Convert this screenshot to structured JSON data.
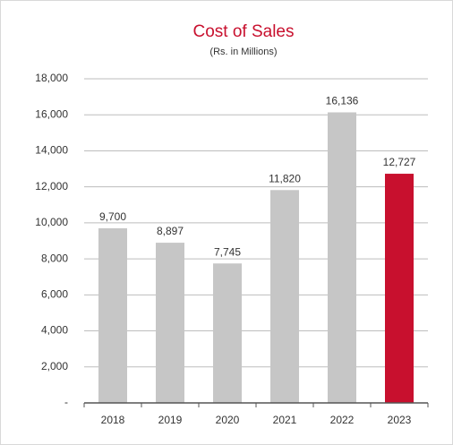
{
  "chart_data": {
    "type": "bar",
    "title": "Cost of Sales",
    "subtitle": "(Rs. in Millions)",
    "categories": [
      "2018",
      "2019",
      "2020",
      "2021",
      "2022",
      "2023"
    ],
    "values": [
      9700,
      8897,
      7745,
      11820,
      16136,
      12727
    ],
    "value_labels": [
      "9,700",
      "8,897",
      "7,745",
      "11,820",
      "16,136",
      "12,727"
    ],
    "colors": [
      "#c6c6c6",
      "#c6c6c6",
      "#c6c6c6",
      "#c6c6c6",
      "#c6c6c6",
      "#c8102e"
    ],
    "ylim": [
      0,
      18000
    ],
    "yticks": [
      {
        "value": 0,
        "label": "-"
      },
      {
        "value": 2000,
        "label": "2,000"
      },
      {
        "value": 4000,
        "label": "4,000"
      },
      {
        "value": 6000,
        "label": "6,000"
      },
      {
        "value": 8000,
        "label": "8,000"
      },
      {
        "value": 10000,
        "label": "10,000"
      },
      {
        "value": 12000,
        "label": "12,000"
      },
      {
        "value": 14000,
        "label": "14,000"
      },
      {
        "value": 16000,
        "label": "16,000"
      },
      {
        "value": 18000,
        "label": "18,000"
      }
    ],
    "grid": true
  }
}
